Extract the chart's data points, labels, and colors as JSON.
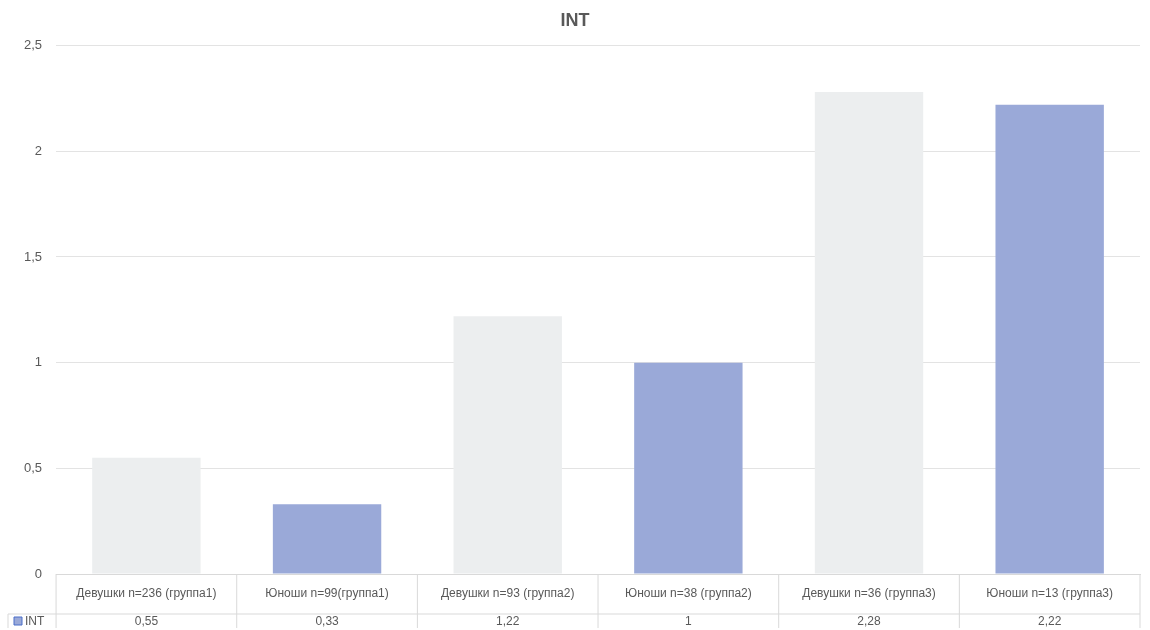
{
  "chart_data": {
    "type": "bar",
    "title": "INT",
    "categories": [
      "Девушки n=236 (группа1)",
      "Юноши n=99(группа1)",
      "Девушки n=93 (группа2)",
      "Юноши n=38 (группа2)",
      "Девушки n=36 (группа3)",
      "Юноши n=13 (группа3)"
    ],
    "series": [
      {
        "name": "INT",
        "color": "#9aa9d8",
        "colors": [
          "#eceeef",
          "#9aa9d8",
          "#eceeef",
          "#9aa9d8",
          "#eceeef",
          "#9aa9d8"
        ],
        "values": [
          0.55,
          0.33,
          1.22,
          1,
          2.28,
          2.22
        ],
        "value_labels": [
          "0,55",
          "0,33",
          "1,22",
          "1",
          "2,28",
          "2,22"
        ]
      }
    ],
    "ylim": [
      0,
      2.5
    ],
    "yticks": [
      0,
      {
        "value": 0.5,
        "label": "0,5"
      },
      1,
      {
        "value": 1.5,
        "label": "1,5"
      },
      2,
      {
        "value": 2.5,
        "label": "2,5"
      }
    ],
    "grid": "y",
    "legend": "bottom left"
  }
}
